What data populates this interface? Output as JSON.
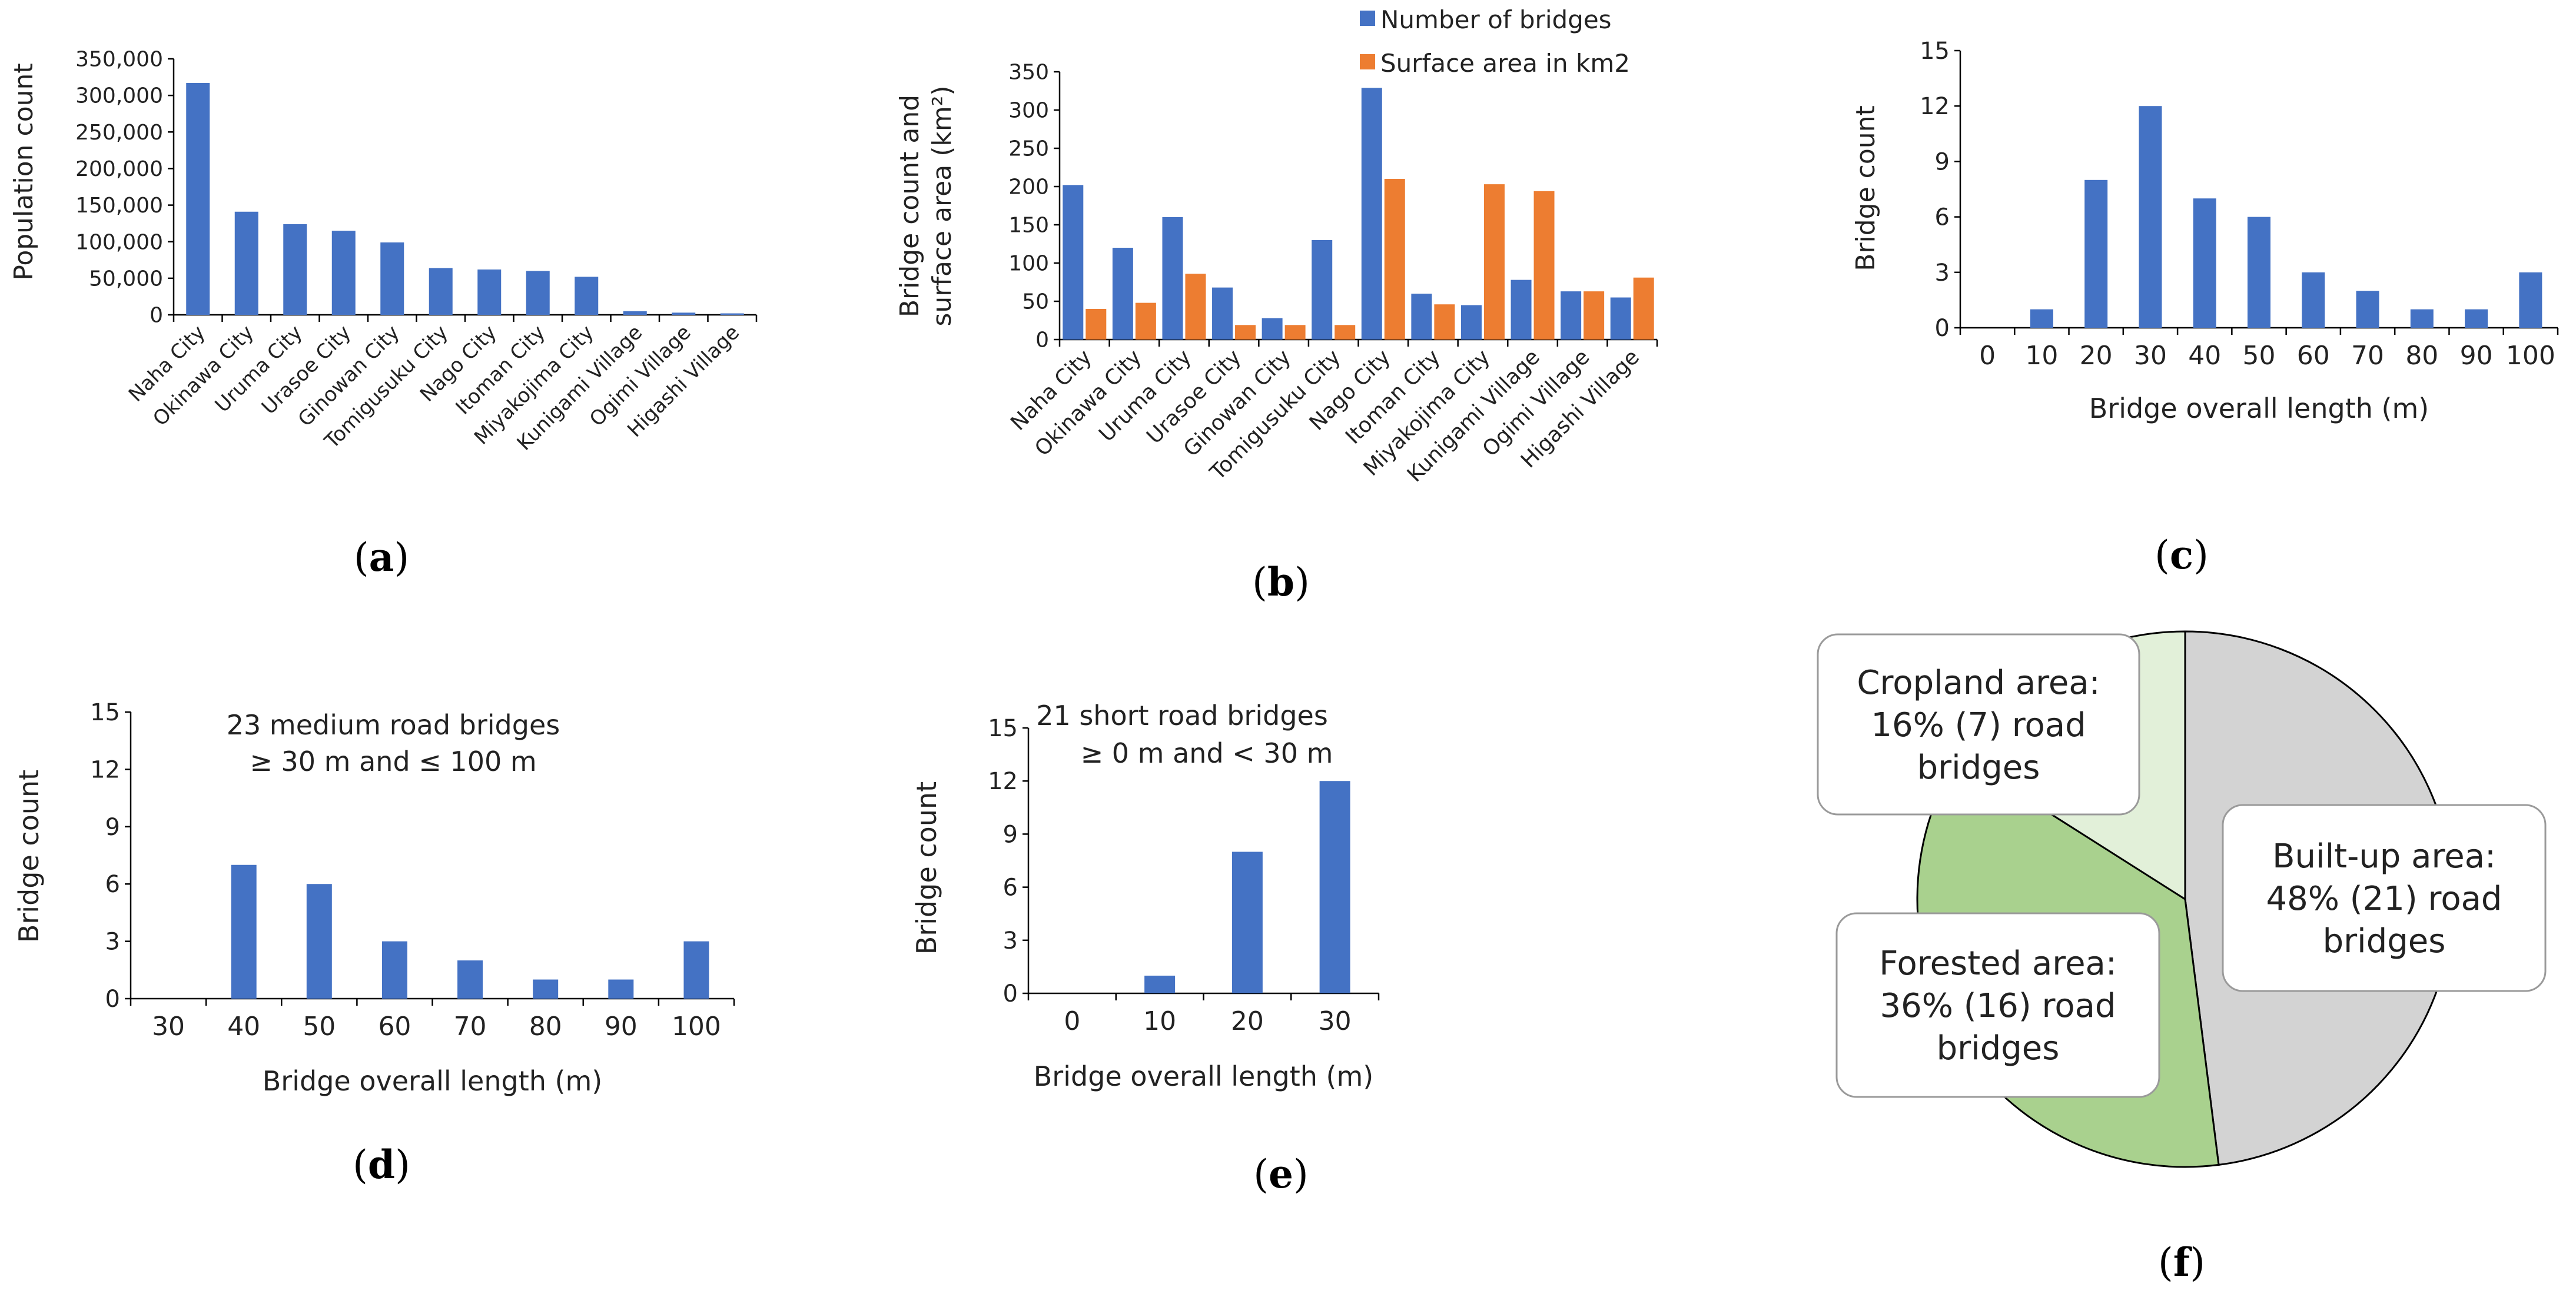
{
  "colors": {
    "blue": "#4472C4",
    "orange": "#ED7D31",
    "builtup": "#D3D3D3",
    "forest": "#A9D18E",
    "cropland": "#E2F0D9",
    "axis": "#000000"
  },
  "chart_data": [
    {
      "id": "a",
      "type": "bar",
      "caption": "a",
      "title": "",
      "xlabel": "",
      "ylabel": "Population count",
      "ylim": [
        0,
        350000
      ],
      "yticks": [
        "0",
        "50,000",
        "100,000",
        "150,000",
        "200,000",
        "250,000",
        "300,000",
        "350,000"
      ],
      "categories": [
        "Naha City",
        "Okinawa City",
        "Uruma City",
        "Urasoe City",
        "Ginowan City",
        "Tomigusuku City",
        "Nago City",
        "Itoman City",
        "Miyakojima City",
        "Kunigami Village",
        "Ogimi Village",
        "Higashi Village"
      ],
      "series": [
        {
          "name": "Population",
          "values": [
            317000,
            141000,
            124000,
            115000,
            99000,
            64000,
            62000,
            60000,
            52000,
            5000,
            3000,
            2000
          ]
        }
      ]
    },
    {
      "id": "b",
      "type": "bar",
      "caption": "b",
      "title": "",
      "xlabel": "",
      "ylabel": [
        "Bridge count and",
        "surface area (km²)"
      ],
      "ylim": [
        0,
        350
      ],
      "yticks": [
        "0",
        "50",
        "100",
        "150",
        "200",
        "250",
        "300",
        "350"
      ],
      "categories": [
        "Naha City",
        "Okinawa City",
        "Uruma City",
        "Urasoe City",
        "Ginowan City",
        "Tomigusuku City",
        "Nago City",
        "Itoman City",
        "Miyakojima City",
        "Kunigami Village",
        "Ogimi Village",
        "Higashi Village"
      ],
      "legend": "top",
      "series": [
        {
          "name": "Number of bridges",
          "values": [
            202,
            120,
            160,
            68,
            28,
            130,
            329,
            60,
            45,
            78,
            63,
            55
          ]
        },
        {
          "name": "Surface area in km2",
          "values": [
            40,
            48,
            86,
            19,
            19,
            19,
            210,
            46,
            203,
            194,
            63,
            81
          ]
        }
      ]
    },
    {
      "id": "c",
      "type": "bar",
      "caption": "c",
      "title": "",
      "xlabel": "Bridge overall length (m)",
      "ylabel": "Bridge count",
      "ylim": [
        0,
        15
      ],
      "yticks": [
        "0",
        "3",
        "6",
        "9",
        "12",
        "15"
      ],
      "categories": [
        "0",
        "10",
        "20",
        "30",
        "40",
        "50",
        "60",
        "70",
        "80",
        "90",
        "100"
      ],
      "series": [
        {
          "name": "Bridge count",
          "values": [
            0,
            1,
            8,
            12,
            7,
            6,
            3,
            2,
            1,
            1,
            3
          ]
        }
      ]
    },
    {
      "id": "d",
      "type": "bar",
      "caption": "d",
      "title": "",
      "annotation": [
        "23 medium road bridges",
        "≥ 30 m and ≤ 100 m"
      ],
      "xlabel": "Bridge overall length (m)",
      "ylabel": "Bridge count",
      "ylim": [
        0,
        15
      ],
      "yticks": [
        "0",
        "3",
        "6",
        "9",
        "12",
        "15"
      ],
      "categories": [
        "30",
        "40",
        "50",
        "60",
        "70",
        "80",
        "90",
        "100"
      ],
      "series": [
        {
          "name": "Bridge count",
          "values": [
            0,
            7,
            6,
            3,
            2,
            1,
            1,
            3
          ]
        }
      ]
    },
    {
      "id": "e",
      "type": "bar",
      "caption": "e",
      "title": "",
      "annotation": [
        "21 short road bridges",
        "≥ 0 m and < 30 m"
      ],
      "xlabel": "Bridge overall length (m)",
      "ylabel": "Bridge count",
      "ylim": [
        0,
        15
      ],
      "yticks": [
        "0",
        "3",
        "6",
        "9",
        "12",
        "15"
      ],
      "categories": [
        "0",
        "10",
        "20",
        "30"
      ],
      "series": [
        {
          "name": "Bridge count",
          "values": [
            0,
            1,
            8,
            12
          ]
        }
      ]
    },
    {
      "id": "f",
      "type": "pie",
      "caption": "f",
      "title": "",
      "slices": [
        {
          "name": "Built-up area",
          "percent": 48,
          "count": 21,
          "label": [
            "Built-up area:",
            "48% (21) road",
            "bridges"
          ]
        },
        {
          "name": "Forested area",
          "percent": 36,
          "count": 16,
          "label": [
            "Forested area:",
            "36% (16) road",
            "bridges"
          ]
        },
        {
          "name": "Cropland area",
          "percent": 16,
          "count": 7,
          "label": [
            "Cropland area:",
            "16% (7) road",
            "bridges"
          ]
        }
      ]
    }
  ]
}
